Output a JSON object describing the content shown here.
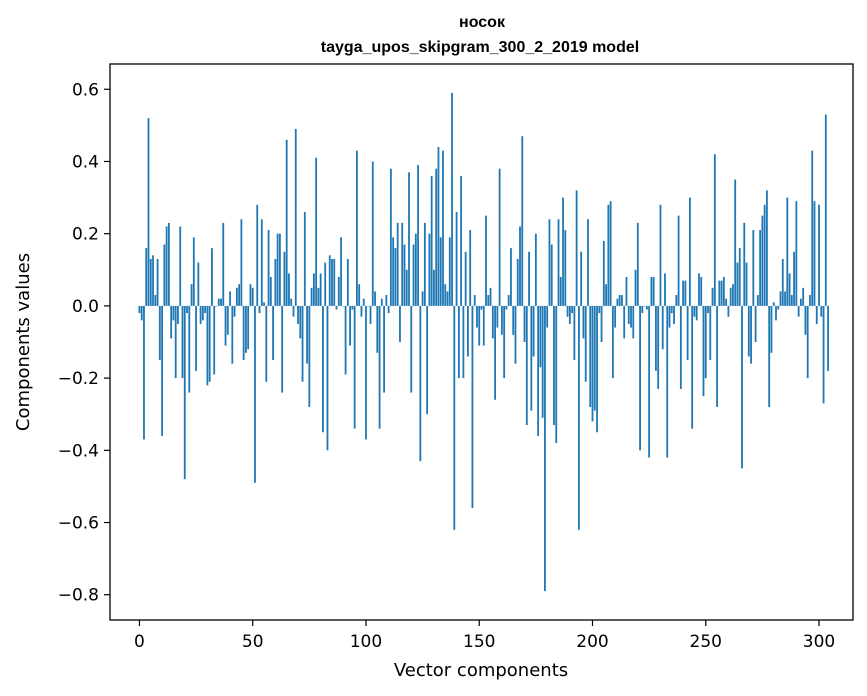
{
  "chart_data": {
    "type": "bar",
    "title": "носок",
    "subtitle": "tayga_upos_skipgram_300_2_2019 model",
    "xlabel": "Vector components",
    "ylabel": "Components values",
    "xlim": [
      -13,
      315
    ],
    "ylim": [
      -0.87,
      0.67
    ],
    "xticks": [
      0,
      50,
      100,
      150,
      200,
      250,
      300
    ],
    "yticks": [
      -0.8,
      -0.6,
      -0.4,
      -0.2,
      0.0,
      0.2,
      0.4,
      0.6
    ],
    "ytick_labels": [
      "−0.8",
      "−0.6",
      "−0.4",
      "−0.2",
      "0.0",
      "0.2",
      "0.4",
      "0.6"
    ],
    "bar_color": "#1f77b4",
    "values": [
      -0.02,
      -0.04,
      -0.37,
      0.16,
      0.52,
      0.13,
      0.14,
      0.03,
      0.13,
      -0.15,
      -0.36,
      0.17,
      0.22,
      0.23,
      -0.09,
      -0.04,
      -0.2,
      -0.05,
      0.22,
      -0.2,
      -0.48,
      -0.02,
      -0.24,
      0.06,
      0.19,
      -0.18,
      0.12,
      -0.05,
      -0.04,
      -0.02,
      -0.22,
      -0.21,
      0.16,
      -0.19,
      0.0,
      0.02,
      0.02,
      0.23,
      -0.11,
      -0.08,
      0.04,
      -0.16,
      -0.03,
      0.05,
      0.06,
      0.24,
      -0.15,
      -0.13,
      -0.12,
      0.06,
      0.05,
      -0.49,
      0.28,
      -0.02,
      0.24,
      0.01,
      -0.21,
      0.21,
      0.08,
      -0.15,
      0.13,
      0.2,
      0.2,
      -0.24,
      0.15,
      0.46,
      0.09,
      0.02,
      -0.03,
      0.49,
      -0.05,
      -0.09,
      -0.21,
      0.26,
      -0.16,
      -0.28,
      0.05,
      0.09,
      0.41,
      0.05,
      0.09,
      -0.35,
      0.12,
      -0.4,
      0.14,
      0.13,
      0.13,
      -0.01,
      0.08,
      0.19,
      0.0,
      -0.19,
      0.13,
      -0.11,
      -0.01,
      -0.34,
      0.43,
      0.06,
      -0.03,
      0.02,
      -0.37,
      0.0,
      -0.05,
      0.4,
      0.04,
      -0.13,
      -0.34,
      0.02,
      -0.24,
      0.03,
      -0.02,
      0.38,
      0.19,
      0.16,
      0.23,
      -0.1,
      0.23,
      0.17,
      0.1,
      0.37,
      -0.24,
      0.17,
      0.2,
      0.39,
      -0.43,
      0.04,
      0.23,
      -0.3,
      0.2,
      0.36,
      0.1,
      0.38,
      0.44,
      0.19,
      0.43,
      0.06,
      0.04,
      0.19,
      0.59,
      -0.62,
      0.26,
      -0.2,
      0.36,
      -0.2,
      0.15,
      -0.14,
      0.21,
      -0.56,
      0.03,
      -0.06,
      -0.11,
      -0.01,
      -0.11,
      0.25,
      0.03,
      0.05,
      -0.09,
      -0.26,
      -0.06,
      0.38,
      -0.08,
      -0.2,
      -0.01,
      0.03,
      0.16,
      -0.08,
      -0.16,
      0.13,
      0.22,
      0.47,
      -0.1,
      -0.33,
      0.15,
      -0.29,
      -0.14,
      0.2,
      -0.36,
      -0.17,
      -0.31,
      -0.79,
      -0.06,
      0.24,
      0.17,
      -0.33,
      -0.38,
      0.24,
      0.08,
      0.3,
      0.21,
      -0.03,
      -0.05,
      -0.02,
      -0.15,
      0.32,
      -0.62,
      0.15,
      -0.09,
      -0.21,
      0.24,
      -0.28,
      -0.32,
      -0.29,
      -0.35,
      -0.02,
      -0.1,
      0.18,
      0.06,
      0.28,
      0.29,
      -0.2,
      -0.06,
      0.02,
      0.03,
      0.03,
      -0.09,
      0.08,
      -0.05,
      -0.06,
      -0.09,
      0.1,
      0.23,
      -0.4,
      -0.02,
      0.0,
      -0.01,
      -0.42,
      0.08,
      0.08,
      -0.18,
      -0.23,
      0.28,
      -0.12,
      0.09,
      -0.42,
      -0.06,
      -0.02,
      -0.05,
      0.03,
      0.25,
      -0.23,
      0.07,
      0.07,
      -0.15,
      0.3,
      -0.34,
      -0.03,
      -0.04,
      0.09,
      0.08,
      -0.25,
      -0.2,
      -0.02,
      -0.15,
      0.05,
      0.42,
      -0.28,
      0.07,
      0.07,
      0.08,
      0.02,
      -0.03,
      0.05,
      0.06,
      0.35,
      0.12,
      0.16,
      -0.45,
      0.23,
      0.12,
      -0.14,
      -0.16,
      0.21,
      -0.1,
      0.03,
      0.21,
      0.25,
      0.28,
      0.32,
      -0.28,
      -0.13,
      0.01,
      -0.04,
      -0.01,
      0.04,
      0.13,
      0.04,
      0.3,
      0.09,
      0.03,
      0.15,
      0.29,
      -0.03,
      0.02,
      0.05,
      -0.08,
      -0.2,
      0.03,
      0.43,
      0.29,
      -0.05,
      0.28,
      -0.03,
      -0.27,
      0.53,
      -0.18
    ]
  }
}
